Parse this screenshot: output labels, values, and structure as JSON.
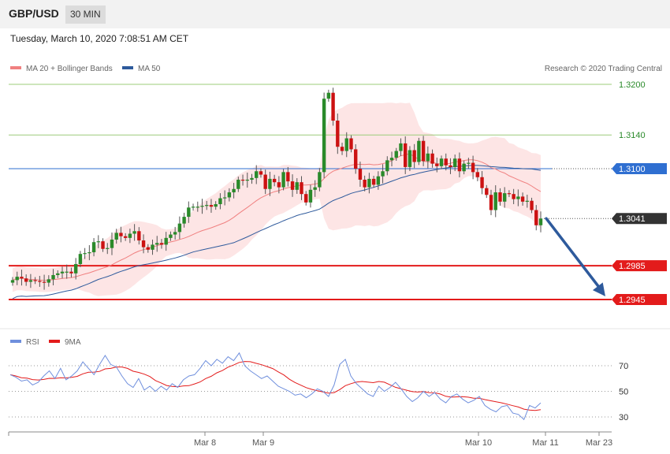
{
  "header": {
    "pair": "GBP/USD",
    "timeframe": "30 MIN",
    "datetime": "Tuesday, March 10, 2020 7:08:51 AM CET"
  },
  "legend": {
    "ma20": "MA 20 + Bollinger Bands",
    "ma50": "MA 50",
    "credit": "Research © 2020 Trading Central",
    "rsi": "RSI",
    "rsi_ma": "9MA"
  },
  "colors": {
    "ma20": "#f08080",
    "ma50": "#2e5a9c",
    "band_fill": "#fde0e0",
    "bull": "#2a8a2a",
    "bear": "#cc1111",
    "resistance": "#9ccc7a",
    "pivot_line": "#2f6fd1",
    "support": "#e31b1b",
    "arrow": "#2e5a9c",
    "rsi": "#6f8fdd",
    "rsi_ma": "#e31b1b"
  },
  "x_labels": [
    "Mar 8",
    "Mar 9",
    "Mar 10",
    "Mar 11",
    "Mar 23"
  ],
  "chart_data": {
    "type": "candlestick",
    "y_range": [
      1.2925,
      1.3215
    ],
    "levels": [
      {
        "label": "1.3200",
        "value": 1.32,
        "kind": "resistance"
      },
      {
        "label": "1.3140",
        "value": 1.314,
        "kind": "resistance"
      },
      {
        "label": "1.3100",
        "value": 1.31,
        "kind": "pivot"
      },
      {
        "label": "1.3041",
        "value": 1.3041,
        "kind": "last"
      },
      {
        "label": "1.2985",
        "value": 1.2985,
        "kind": "support"
      },
      {
        "label": "1.2945",
        "value": 1.2945,
        "kind": "support"
      }
    ],
    "close": [
      1.2968,
      1.2972,
      1.297,
      1.2966,
      1.2968,
      1.2967,
      1.2966,
      1.2965,
      1.2969,
      1.2974,
      1.2976,
      1.2978,
      1.2978,
      1.2976,
      1.2987,
      1.2999,
      1.3,
      1.3001,
      1.3013,
      1.3014,
      1.3005,
      1.3006,
      1.3016,
      1.3024,
      1.302,
      1.3018,
      1.3023,
      1.3026,
      1.3015,
      1.3007,
      1.3004,
      1.301,
      1.3012,
      1.301,
      1.3018,
      1.3022,
      1.3025,
      1.3035,
      1.3043,
      1.3054,
      1.3055,
      1.3055,
      1.3056,
      1.3057,
      1.3055,
      1.3058,
      1.3065,
      1.3066,
      1.3072,
      1.3076,
      1.3087,
      1.3086,
      1.3087,
      1.3089,
      1.3097,
      1.3093,
      1.3076,
      1.3088,
      1.3084,
      1.3078,
      1.3096,
      1.3085,
      1.3075,
      1.3084,
      1.307,
      1.306,
      1.3075,
      1.3078,
      1.3096,
      1.3183,
      1.319,
      1.3157,
      1.3126,
      1.3121,
      1.3136,
      1.3123,
      1.31,
      1.3087,
      1.3078,
      1.3088,
      1.3081,
      1.3091,
      1.3097,
      1.311,
      1.3113,
      1.3121,
      1.313,
      1.3102,
      1.3122,
      1.3108,
      1.3133,
      1.3109,
      1.3118,
      1.3106,
      1.3103,
      1.3112,
      1.3104,
      1.3102,
      1.3112,
      1.3097,
      1.3106,
      1.3107,
      1.3096,
      1.309,
      1.3077,
      1.3069,
      1.3051,
      1.3072,
      1.3061,
      1.3071,
      1.307,
      1.3064,
      1.3067,
      1.3061,
      1.3062,
      1.3051,
      1.3033,
      1.3041
    ],
    "timeframe": "30 MIN",
    "projection": {
      "from": 1.3041,
      "to": 1.2945
    }
  },
  "rsi": {
    "levels": [
      70,
      50,
      30
    ],
    "rsi": [
      63,
      61,
      58,
      59,
      55,
      57,
      62,
      66,
      60,
      68,
      59,
      62,
      66,
      73,
      68,
      63,
      71,
      78,
      71,
      69,
      62,
      56,
      53,
      60,
      51,
      54,
      50,
      54,
      51,
      56,
      53,
      59,
      62,
      63,
      68,
      74,
      70,
      75,
      72,
      77,
      74,
      80,
      70,
      66,
      63,
      60,
      62,
      58,
      54,
      52,
      50,
      47,
      48,
      45,
      48,
      52,
      50,
      46,
      55,
      71,
      75,
      62,
      56,
      52,
      48,
      46,
      54,
      50,
      53,
      57,
      52,
      46,
      42,
      45,
      50,
      46,
      49,
      44,
      41,
      46,
      48,
      44,
      41,
      43,
      46,
      39,
      36,
      34,
      38,
      39,
      33,
      32,
      28,
      39,
      37,
      41
    ]
  }
}
